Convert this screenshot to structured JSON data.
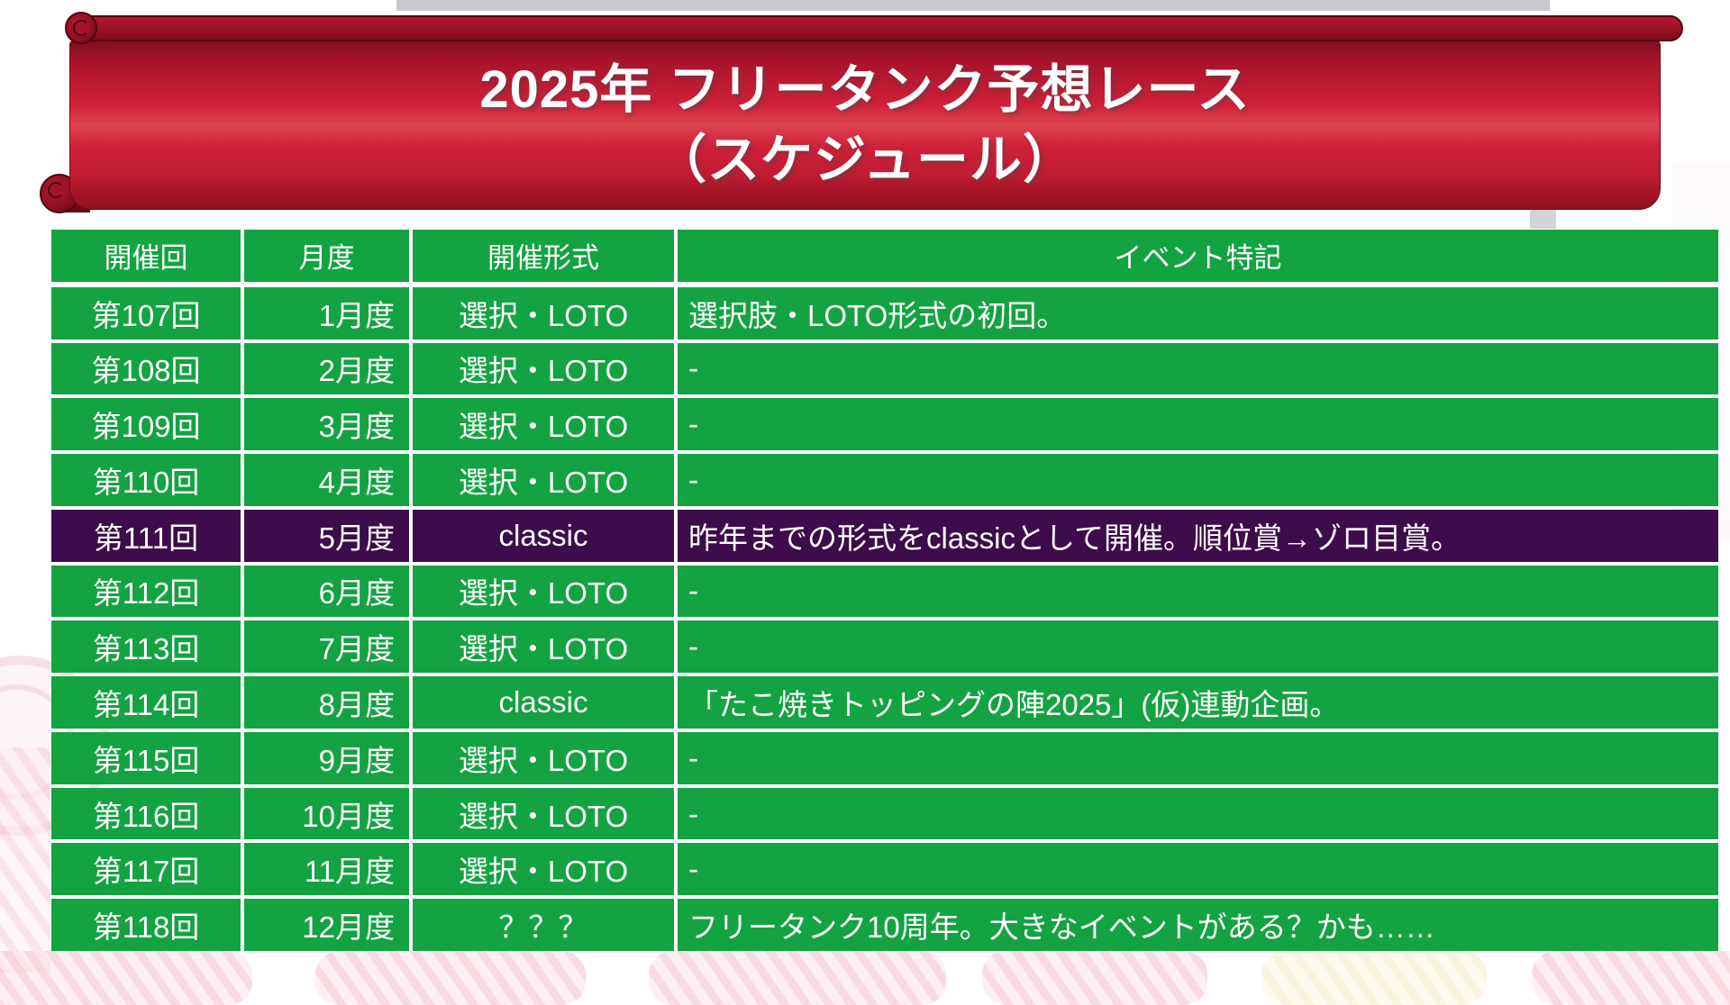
{
  "banner": {
    "title_line1": "2025年 フリータンク予想レース",
    "title_line2": "（スケジュール）",
    "text_color": "#FFFFFF",
    "ribbon_red": "#CF2038",
    "ribbon_dark_red": "#7D0C1D"
  },
  "table": {
    "columns": [
      "開催回",
      "月度",
      "開催形式",
      "イベント特記"
    ],
    "row_fields": [
      "round",
      "month",
      "format",
      "note"
    ],
    "rows": [
      {
        "round": "第107回",
        "month": "1月度",
        "format": "選択・LOTO",
        "note": "選択肢・LOTO形式の初回。",
        "highlighted": false
      },
      {
        "round": "第108回",
        "month": "2月度",
        "format": "選択・LOTO",
        "note": "-",
        "highlighted": false
      },
      {
        "round": "第109回",
        "month": "3月度",
        "format": "選択・LOTO",
        "note": "-",
        "highlighted": false
      },
      {
        "round": "第110回",
        "month": "4月度",
        "format": "選択・LOTO",
        "note": "-",
        "highlighted": false
      },
      {
        "round": "第111回",
        "month": "5月度",
        "format": "classic",
        "note": "昨年までの形式をclassicとして開催。順位賞→ゾロ目賞。",
        "highlighted": true
      },
      {
        "round": "第112回",
        "month": "6月度",
        "format": "選択・LOTO",
        "note": "-",
        "highlighted": false
      },
      {
        "round": "第113回",
        "month": "7月度",
        "format": "選択・LOTO",
        "note": "-",
        "highlighted": false
      },
      {
        "round": "第114回",
        "month": "8月度",
        "format": "classic",
        "note": "「たこ焼きトッピングの陣2025」(仮)連動企画。",
        "highlighted": false
      },
      {
        "round": "第115回",
        "month": "9月度",
        "format": "選択・LOTO",
        "note": "-",
        "highlighted": false
      },
      {
        "round": "第116回",
        "month": "10月度",
        "format": "選択・LOTO",
        "note": "-",
        "highlighted": false
      },
      {
        "round": "第117回",
        "month": "11月度",
        "format": "選択・LOTO",
        "note": "-",
        "highlighted": false
      },
      {
        "round": "第118回",
        "month": "12月度",
        "format": "？？？",
        "note": "フリータンク10周年。大きなイベントがある？かも……",
        "highlighted": false
      }
    ],
    "colors": {
      "cell_green": "#14A341",
      "highlight_purple": "#3D0C4C",
      "border_white": "#FFFFFF",
      "text_white": "#FFFFFF"
    }
  }
}
